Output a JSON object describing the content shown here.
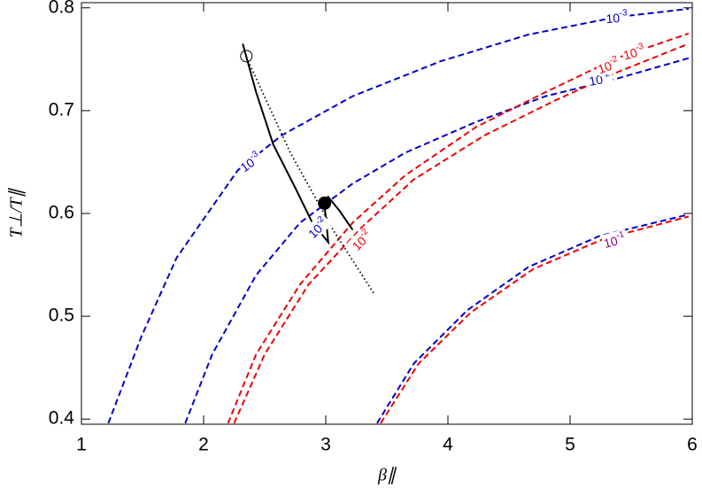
{
  "chart_data": {
    "type": "line",
    "x_label": "β∥",
    "y_label": "T⊥/T∥",
    "xlim": [
      1,
      6
    ],
    "ylim": [
      0.395,
      0.805
    ],
    "xticks": [
      1,
      2,
      3,
      4,
      5,
      6
    ],
    "yticks": [
      0.4,
      0.5,
      0.6,
      0.7,
      0.8
    ],
    "series": [
      {
        "color": "#0000cc",
        "style": "dashed",
        "x": [
          1.22,
          1.49,
          1.78,
          2.28,
          2.64,
          3.22,
          3.94,
          4.66,
          5.38,
          5.97
        ],
        "values": [
          0.396,
          0.48,
          0.557,
          0.642,
          0.676,
          0.714,
          0.748,
          0.774,
          0.791,
          0.799
        ]
      },
      {
        "color": "#0000cc",
        "style": "dashed",
        "x": [
          1.85,
          2.07,
          2.43,
          2.79,
          3.22,
          3.65,
          4.23,
          4.8,
          5.38,
          5.97
        ],
        "values": [
          0.396,
          0.463,
          0.54,
          0.591,
          0.629,
          0.659,
          0.689,
          0.714,
          0.731,
          0.751
        ]
      },
      {
        "color": "#ee0000",
        "style": "dashed",
        "x": [
          2.2,
          2.43,
          2.79,
          3.22,
          3.65,
          4.23,
          4.8,
          5.38,
          5.97
        ],
        "values": [
          0.396,
          0.463,
          0.531,
          0.591,
          0.637,
          0.684,
          0.718,
          0.751,
          0.775
        ]
      },
      {
        "color": "#ee0000",
        "style": "dashed",
        "x": [
          2.25,
          2.5,
          2.86,
          3.29,
          3.72,
          4.3,
          4.88,
          5.38,
          5.97
        ],
        "values": [
          0.396,
          0.463,
          0.531,
          0.586,
          0.633,
          0.676,
          0.71,
          0.737,
          0.765
        ]
      },
      {
        "color": "#0000cc",
        "style": "dashed",
        "x": [
          3.42,
          3.72,
          4.16,
          4.66,
          5.24,
          5.97
        ],
        "values": [
          0.396,
          0.454,
          0.506,
          0.548,
          0.578,
          0.599
        ]
      },
      {
        "color": "#ee0000",
        "style": "dashed",
        "x": [
          3.45,
          3.76,
          4.19,
          4.7,
          5.27,
          5.97
        ],
        "values": [
          0.396,
          0.454,
          0.504,
          0.546,
          0.575,
          0.597
        ]
      },
      {
        "color": "#000000",
        "style": "dotted",
        "x": [
          2.35,
          2.71,
          3.07,
          3.4
        ],
        "values": [
          0.752,
          0.659,
          0.582,
          0.521
        ]
      },
      {
        "color": "#000000",
        "style": "solid",
        "x": [
          2.32,
          2.43,
          2.57,
          2.75,
          2.89,
          3.02,
          2.99,
          3.02,
          3.11,
          3.22
        ],
        "values": [
          0.765,
          0.718,
          0.667,
          0.625,
          0.591,
          0.572,
          0.608,
          0.616,
          0.603,
          0.584
        ]
      },
      {
        "color": "#000000",
        "style": "open-circle",
        "x": [
          2.35
        ],
        "values": [
          0.753
        ]
      },
      {
        "color": "#000000",
        "style": "filled-circle",
        "x": [
          2.99
        ],
        "values": [
          0.61
        ]
      }
    ],
    "annotations": [
      {
        "base": "10",
        "exponent": "-3",
        "color": "#0000cc",
        "x": 5.38,
        "y": 0.791
      },
      {
        "base": "10",
        "exponent": "-3",
        "color": "#0000cc",
        "x": 2.38,
        "y": 0.65
      },
      {
        "base": "10",
        "exponent": "-2",
        "color": "#0000cc",
        "x": 2.93,
        "y": 0.586
      },
      {
        "base": "10",
        "exponent": "-2",
        "color": "#0000cc",
        "x": 5.24,
        "y": 0.731
      },
      {
        "base": "10",
        "exponent": "-3",
        "color": "#ee0000",
        "x": 5.52,
        "y": 0.757
      },
      {
        "base": "10",
        "exponent": "-2",
        "color": "#ee0000",
        "x": 5.31,
        "y": 0.744
      },
      {
        "base": "10",
        "exponent": "-2",
        "color": "#ee0000",
        "x": 3.29,
        "y": 0.574
      },
      {
        "base": "10",
        "exponent": "-1",
        "color": "#880088",
        "x": 5.36,
        "y": 0.574
      }
    ]
  }
}
